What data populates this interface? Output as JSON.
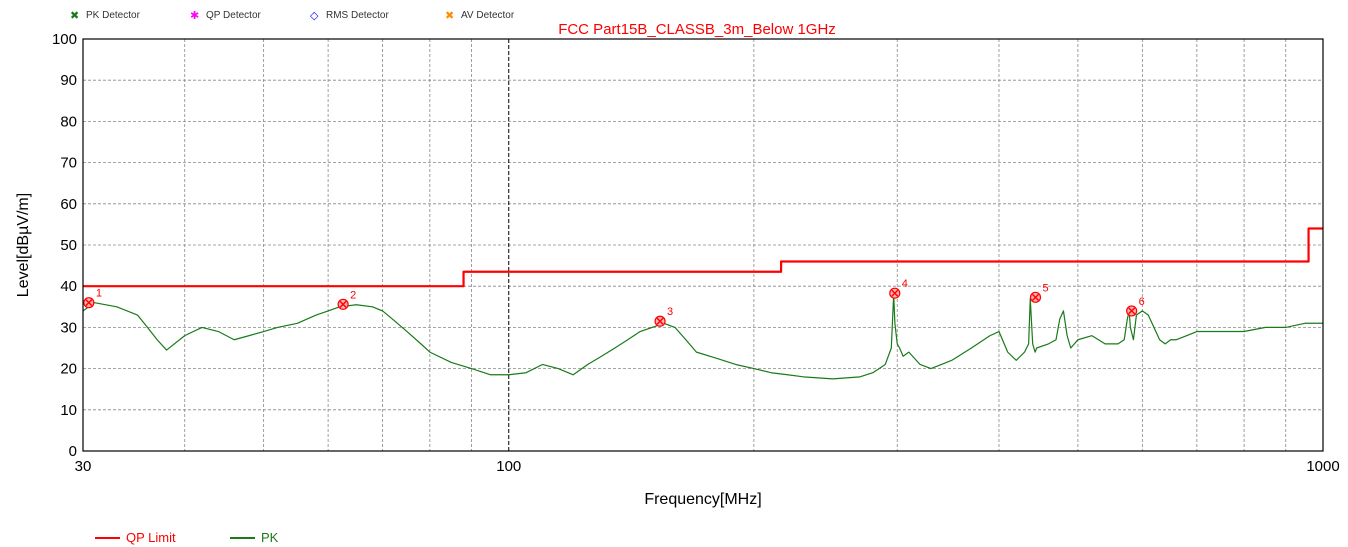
{
  "chart_data": {
    "type": "line",
    "title": "FCC Part15B_CLASSB_3m_Below 1GHz",
    "xlabel": "Frequency[MHz]",
    "ylabel": "Level[dBµV/m]",
    "x_scale": "log",
    "xlim": [
      30,
      1000
    ],
    "ylim": [
      0,
      100
    ],
    "x_ticks": [
      {
        "value": 30,
        "label": "30"
      },
      {
        "value": 100,
        "label": "100"
      },
      {
        "value": 1000,
        "label": "1000"
      }
    ],
    "y_ticks": [
      0,
      10,
      20,
      30,
      40,
      50,
      60,
      70,
      80,
      90,
      100
    ],
    "grid": true,
    "detector_legend": [
      {
        "name": "PK Detector",
        "symbol": "✖",
        "color": "#1a7a1a"
      },
      {
        "name": "QP Detector",
        "symbol": "✱",
        "color": "#ff00ff"
      },
      {
        "name": "RMS Detector",
        "symbol": "◇",
        "color": "#0000ff"
      },
      {
        "name": "AV Detector",
        "symbol": "✖",
        "color": "#ff8c00"
      }
    ],
    "series": [
      {
        "name": "QP Limit",
        "color": "#ff0000",
        "x": [
          30,
          88,
          88,
          216,
          216,
          960,
          960,
          1000
        ],
        "y": [
          40,
          40,
          43.5,
          43.5,
          46,
          46,
          54,
          54
        ]
      },
      {
        "name": "PK",
        "color": "#1a7a1a",
        "x": [
          30,
          31,
          33,
          35,
          36,
          37,
          38,
          40,
          42,
          44,
          46,
          48,
          50,
          52,
          55,
          58,
          60,
          62,
          65,
          68,
          70,
          72,
          75,
          78,
          80,
          85,
          90,
          95,
          100,
          105,
          110,
          115,
          120,
          125,
          130,
          135,
          140,
          145,
          150,
          155,
          160,
          165,
          170,
          180,
          190,
          200,
          210,
          220,
          230,
          250,
          270,
          280,
          290,
          295,
          297,
          298,
          300,
          302,
          305,
          310,
          320,
          330,
          340,
          350,
          370,
          390,
          400,
          410,
          420,
          430,
          435,
          437,
          440,
          443,
          445,
          460,
          470,
          475,
          480,
          485,
          490,
          500,
          520,
          540,
          560,
          570,
          575,
          578,
          580,
          585,
          590,
          600,
          610,
          620,
          630,
          640,
          650,
          660,
          680,
          700,
          750,
          800,
          850,
          900,
          950,
          1000
        ],
        "y": [
          34,
          36,
          35,
          33,
          30,
          27,
          24.5,
          28,
          30,
          29,
          27,
          28,
          29,
          30,
          31,
          33,
          34,
          35,
          35.5,
          35,
          34,
          32,
          29,
          26,
          24,
          21.5,
          20,
          18.5,
          18.5,
          19,
          21,
          20,
          18.5,
          21,
          23,
          25,
          27,
          29,
          30,
          31,
          30,
          27,
          24,
          22.5,
          21,
          20,
          19,
          18.5,
          18,
          17.5,
          18,
          19,
          21,
          25,
          38,
          31,
          26,
          25,
          23,
          24,
          21,
          20,
          21,
          22,
          25,
          28,
          29,
          24,
          22,
          24,
          26,
          37,
          26,
          24,
          25,
          26,
          27,
          32,
          34,
          28,
          25,
          27,
          28,
          26,
          26,
          27,
          32,
          34,
          30,
          27,
          33,
          34,
          33,
          30,
          27,
          26,
          27,
          27,
          28,
          29,
          29,
          29,
          30,
          30,
          31,
          31
        ]
      }
    ],
    "markers": [
      {
        "label": "1",
        "x": 30.5,
        "y": 36
      },
      {
        "label": "2",
        "x": 62.6,
        "y": 35.6
      },
      {
        "label": "3",
        "x": 153.4,
        "y": 31.5
      },
      {
        "label": "4",
        "x": 297.9,
        "y": 38.3
      },
      {
        "label": "5",
        "x": 443.5,
        "y": 37.3
      },
      {
        "label": "6",
        "x": 582.1,
        "y": 34
      }
    ]
  }
}
